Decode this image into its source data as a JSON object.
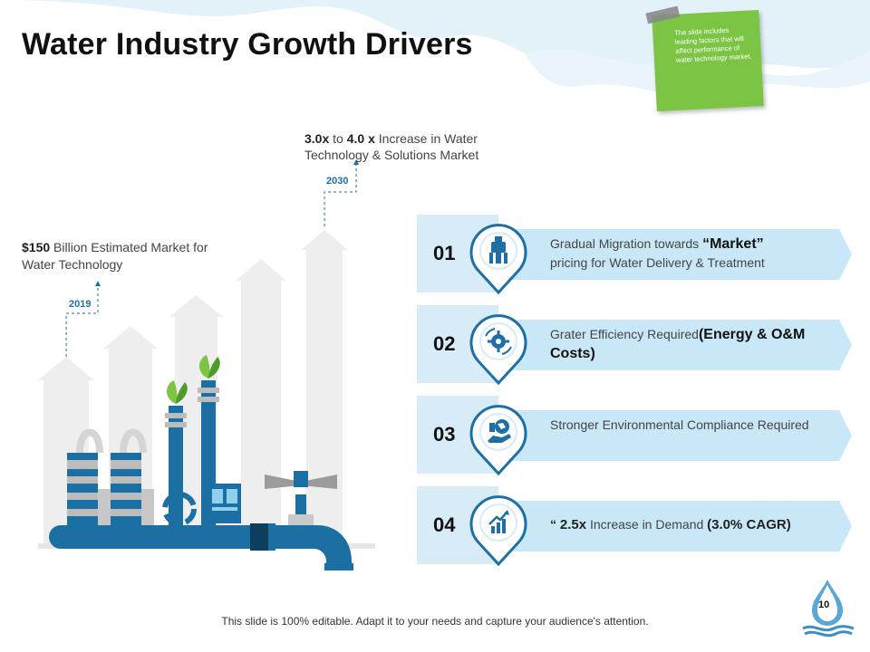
{
  "title": "Water Industry Growth Drivers",
  "sticky_note": "The slide includes leading factors that will affect performance of water technology market.",
  "year_2030": "2030",
  "year_2019": "2019",
  "label_2030": {
    "v1": "3.0x",
    "to": " to ",
    "v2": "4.0 x",
    "rest": " Increase  in Water Technology  & Solutions Market"
  },
  "label_2019": {
    "v": "$150",
    "rest": " Billion Estimated Market for Water Technology"
  },
  "drivers": [
    {
      "num": "01",
      "text_a": "Gradual Migration towards ",
      "strong": "“Market”",
      "text_b": "pricing for Water Delivery & Treatment",
      "icon": "water-tower-icon"
    },
    {
      "num": "02",
      "text_a": "Grater Efficiency Required",
      "strong": "(Energy & O&M Costs)",
      "text_b": "",
      "icon": "gear-cycle-icon"
    },
    {
      "num": "03",
      "text_a": "Stronger Environmental Compliance Required",
      "strong": "",
      "text_b": "",
      "icon": "globe-hand-icon"
    },
    {
      "num": "04",
      "text_a": "“ ",
      "strong": "2.5x",
      "text_b": " Increase  in Demand ",
      "strong2": "(3.0% CAGR)",
      "icon": "growth-chart-icon"
    }
  ],
  "footer": "This slide is 100% editable. Adapt it to your needs and capture your audience's attention.",
  "page_number": "10",
  "colors": {
    "accent": "#1e6fa6",
    "light_blue": "#d7ecf7",
    "arrow_blue": "#c9e8f7",
    "sticky_green": "#7cc444"
  }
}
